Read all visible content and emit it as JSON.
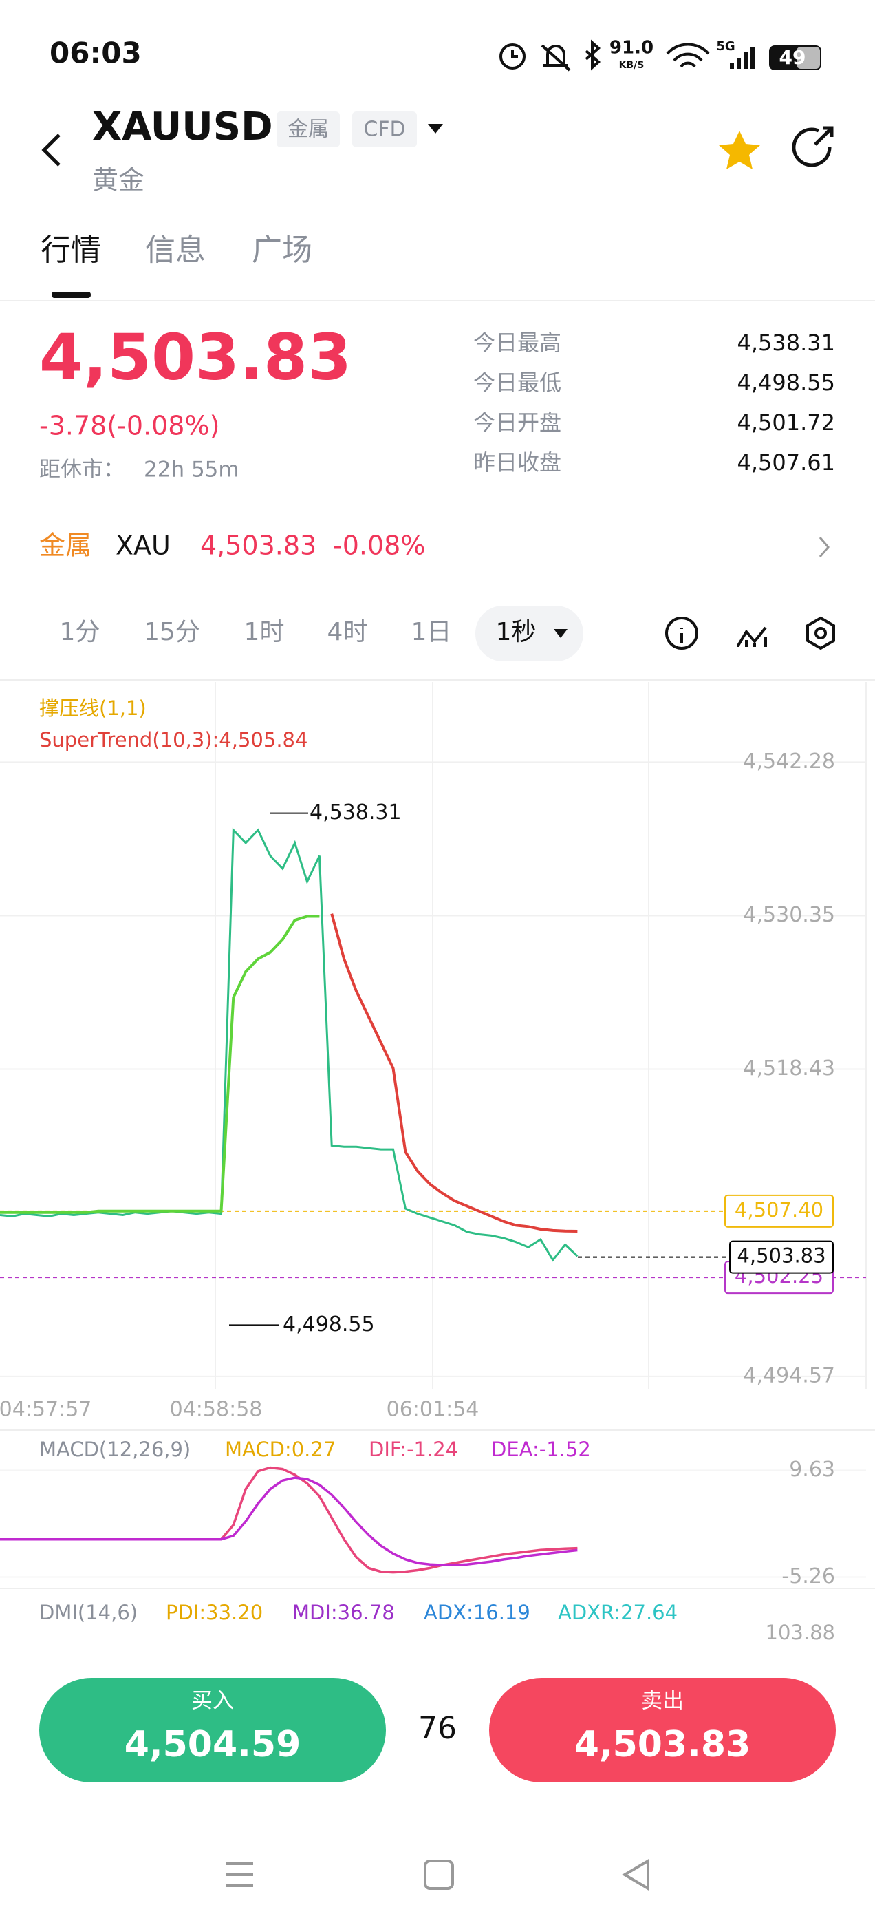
{
  "status_bar": {
    "time": "06:03",
    "net_speed": "91.0",
    "net_unit": "KB/S",
    "signal": "5G",
    "battery": "49"
  },
  "header": {
    "symbol": "XAUUSD",
    "tags": [
      "金属",
      "CFD"
    ],
    "name": "黄金"
  },
  "tabs": [
    "行情",
    "信息",
    "广场"
  ],
  "quote": {
    "price": "4,503.83",
    "change": "-3.78(-0.08%)",
    "close_label": "距休市：",
    "close_time": "22h 55m",
    "stats": [
      {
        "label": "今日最高",
        "value": "4,538.31"
      },
      {
        "label": "今日最低",
        "value": "4,498.55"
      },
      {
        "label": "今日开盘",
        "value": "4,501.72"
      },
      {
        "label": "昨日收盘",
        "value": "4,507.61"
      }
    ]
  },
  "related": {
    "category": "金属",
    "code": "XAU",
    "price": "4,503.83",
    "change": "-0.08%"
  },
  "intervals": [
    "1分",
    "15分",
    "1时",
    "4时",
    "1日",
    "1秒"
  ],
  "price_chart": {
    "type": "line",
    "indicator": "撑压线(1,1)",
    "supertrend_label": "SuperTrend(10,3):4,505.84",
    "ylim": [
      4493.6,
      4548.5
    ],
    "yticks": [
      {
        "value": 4542.28,
        "label": "4,542.28"
      },
      {
        "value": 4530.35,
        "label": "4,530.35"
      },
      {
        "value": 4518.43,
        "label": "4,518.43"
      },
      {
        "value": 4494.57,
        "label": "4,494.57"
      }
    ],
    "xtick_labels": [
      "04:57:57",
      "04:58:58",
      "06:01:54"
    ],
    "grid": true,
    "series": [
      {
        "color": "#2ebd85",
        "values": [
          4507.1,
          4507.0,
          4507.2,
          4507.1,
          4507.0,
          4507.2,
          4507.1,
          4507.2,
          4507.3,
          4507.2,
          4507.1,
          4507.3,
          4507.2,
          4507.3,
          4507.4,
          4507.3,
          4507.2,
          4507.3,
          4507.2,
          4537,
          4536,
          4537,
          4535,
          4534,
          4536,
          4533,
          4535,
          4512.5,
          4512.4,
          4512.4,
          4512.3,
          4512.2,
          4512.2,
          4507.6,
          4507.2,
          4506.9,
          4506.6,
          4506.3,
          4505.8,
          4505.6,
          4505.5,
          4505.3,
          4505.0,
          4504.6,
          4505.2,
          4503.6,
          4504.8,
          4503.9
        ]
      },
      {
        "color": "#5fd43a",
        "values": [
          4507.3,
          4507.3,
          4507.3,
          4507.3,
          4507.3,
          4507.3,
          4507.3,
          4507.3,
          4507.4,
          4507.4,
          4507.4,
          4507.4,
          4507.4,
          4507.4,
          4507.4,
          4507.4,
          4507.4,
          4507.4,
          4507.4,
          4524,
          4526,
          4527,
          4527.5,
          4528.5,
          4530,
          4530.3,
          4530.3,
          null,
          null,
          null,
          null,
          null,
          null,
          null,
          null,
          null,
          null,
          null,
          null,
          null,
          null,
          null,
          null,
          null,
          null,
          null,
          null,
          null
        ]
      },
      {
        "color": "#e0403a",
        "values": [
          null,
          null,
          null,
          null,
          null,
          null,
          null,
          null,
          null,
          null,
          null,
          null,
          null,
          null,
          null,
          null,
          null,
          null,
          null,
          null,
          null,
          null,
          null,
          null,
          null,
          null,
          null,
          4530.5,
          4527,
          4524.5,
          4522.5,
          4520.5,
          4518.5,
          4512,
          4510.5,
          4509.5,
          4508.8,
          4508.2,
          4507.8,
          4507.4,
          4507.0,
          4506.6,
          4506.3,
          4506.2,
          4506.0,
          4505.9,
          4505.85,
          4505.84
        ]
      }
    ],
    "high": {
      "value": 4538.31,
      "label": "4,538.31"
    },
    "low": {
      "value": 4498.55,
      "label": "4,498.55"
    },
    "levels": [
      {
        "value": 4502.25,
        "label": "4,502.25",
        "color": "#b536c8"
      },
      {
        "value": 4507.4,
        "label": "4,507.40",
        "color": "#f0b90b"
      },
      {
        "value": 4503.83,
        "label": "4,503.83",
        "color": "#000000"
      }
    ]
  },
  "macd_chart": {
    "type": "line",
    "title": "MACD(12,26,9)",
    "macd_label": "MACD:0.27",
    "dif_label": "DIF:-1.24",
    "dea_label": "DEA:-1.52",
    "ylim": [
      -6.46,
      14.94
    ],
    "yticks": [
      9.63,
      -5.26
    ],
    "series": [
      {
        "color": "#e8457b",
        "values": [
          0,
          0,
          0,
          0,
          0,
          0,
          0,
          0,
          0,
          0,
          0,
          0,
          0,
          0,
          0,
          0,
          0,
          0,
          0,
          2,
          7,
          9.5,
          10,
          9.8,
          9,
          7.8,
          6,
          3,
          0,
          -2.5,
          -4,
          -4.5,
          -4.6,
          -4.5,
          -4.3,
          -4,
          -3.6,
          -3.3,
          -3,
          -2.7,
          -2.4,
          -2.1,
          -1.9,
          -1.7,
          -1.5,
          -1.4,
          -1.3,
          -1.24
        ]
      },
      {
        "color": "#c02ad0",
        "values": [
          0,
          0,
          0,
          0,
          0,
          0,
          0,
          0,
          0,
          0,
          0,
          0,
          0,
          0,
          0,
          0,
          0,
          0,
          0,
          0.5,
          2.5,
          5,
          7,
          8.2,
          8.6,
          8.4,
          7.6,
          6.2,
          4.4,
          2.4,
          0.6,
          -0.9,
          -2,
          -2.8,
          -3.3,
          -3.5,
          -3.6,
          -3.6,
          -3.5,
          -3.3,
          -3.1,
          -2.8,
          -2.6,
          -2.3,
          -2.1,
          -1.9,
          -1.7,
          -1.52
        ]
      }
    ]
  },
  "dmi": {
    "title": "DMI(14,6)",
    "pdi": "PDI:33.20",
    "mdi": "MDI:36.78",
    "adx": "ADX:16.19",
    "adxr": "ADXR:27.64",
    "tick": "103.88"
  },
  "trade": {
    "buy_label": "买入",
    "buy_price": "4,504.59",
    "spread": "76",
    "sell_label": "卖出",
    "sell_price": "4,503.83"
  }
}
